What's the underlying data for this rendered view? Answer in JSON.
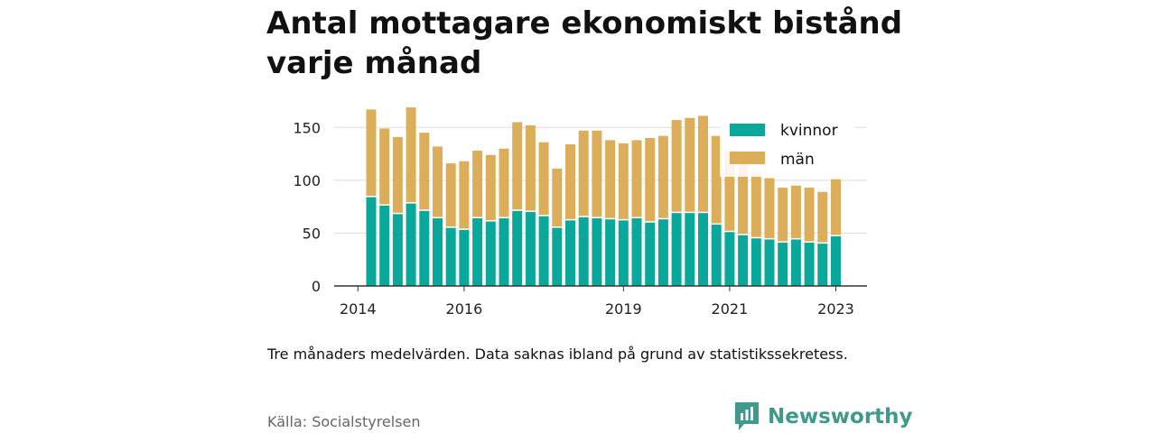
{
  "title": "Antal mottagare ekonomiskt bistånd varje månad",
  "note": "Tre månaders medelvärden. Data saknas ibland på grund av statistikssekretess.",
  "source": "Källa: Socialstyrelsen",
  "brand": {
    "name": "Newsworthy",
    "logo_icon": "newsworthy-logo-icon"
  },
  "colors": {
    "kvinnor": "#0aa89a",
    "man": "#dcae5a",
    "axis": "#333333",
    "grid": "#dddddd"
  },
  "chart_data": {
    "type": "bar",
    "stacked": true,
    "x": [
      "2014-04",
      "2014-07",
      "2014-10",
      "2015-01",
      "2015-04",
      "2015-07",
      "2015-10",
      "2016-01",
      "2016-04",
      "2016-07",
      "2016-10",
      "2017-01",
      "2017-04",
      "2017-07",
      "2017-10",
      "2018-01",
      "2018-04",
      "2018-07",
      "2018-10",
      "2019-01",
      "2019-04",
      "2019-07",
      "2019-10",
      "2020-01",
      "2020-04",
      "2020-07",
      "2020-10",
      "2021-01",
      "2021-04",
      "2021-07",
      "2021-10",
      "2022-01",
      "2022-04",
      "2022-07",
      "2022-10",
      "2023-01"
    ],
    "series": [
      {
        "name": "kvinnor",
        "values": [
          84,
          76,
          68,
          78,
          71,
          64,
          55,
          53,
          64,
          61,
          64,
          71,
          70,
          66,
          55,
          62,
          65,
          64,
          63,
          62,
          64,
          60,
          63,
          69,
          69,
          69,
          58,
          51,
          48,
          45,
          44,
          41,
          44,
          41,
          40,
          47
        ]
      },
      {
        "name": "män",
        "values": [
          83,
          73,
          73,
          91,
          74,
          68,
          61,
          65,
          64,
          63,
          66,
          84,
          82,
          70,
          56,
          72,
          82,
          83,
          75,
          73,
          74,
          80,
          79,
          88,
          90,
          92,
          84,
          77,
          69,
          62,
          58,
          52,
          51,
          52,
          49,
          54
        ]
      }
    ],
    "x_ticks": [
      "2014",
      "2016",
      "2019",
      "2021",
      "2023"
    ],
    "y_ticks": [
      0,
      50,
      100,
      150
    ],
    "ylim": [
      0,
      175
    ],
    "grid": true,
    "legend": "top-right"
  }
}
